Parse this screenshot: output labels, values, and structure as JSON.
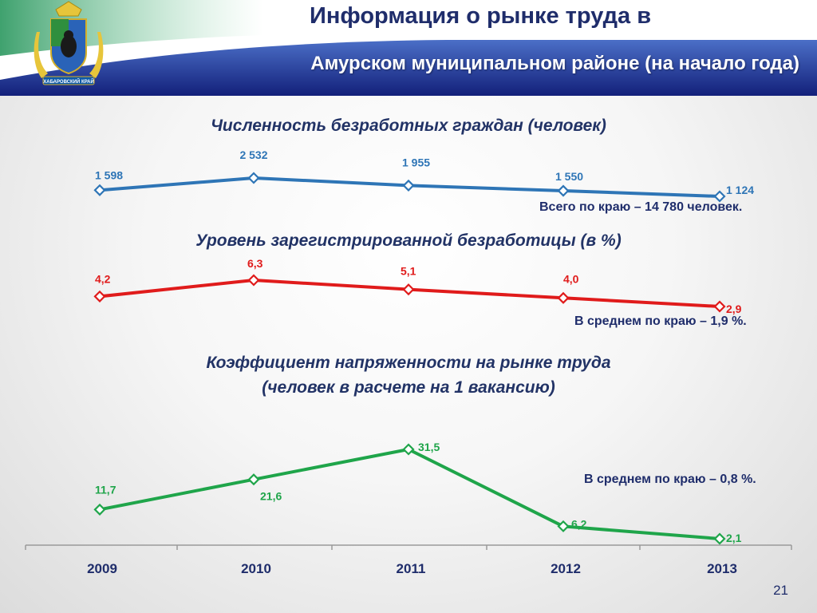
{
  "header": {
    "title_line1": "Информация о рынке труда в",
    "title_line2": "Амурском муниципальном районе (на начало года)",
    "emblem_icon": "khabarovsk-krai-coat-of-arms-icon"
  },
  "colors": {
    "blue": "#2e75b6",
    "red": "#e01b1b",
    "green": "#1fa54a",
    "title_navy": "#1f2d6b"
  },
  "sections": {
    "unemployed_title": "Численность безработных граждан (человек)",
    "unemployed_note": "Всего по краю – 14 780 человек.",
    "rate_title": "Уровень зарегистрированной безработицы (в %)",
    "rate_note": "В среднем по краю – 1,9 %.",
    "tension_title_line1": "Коэффициент напряженности на рынке труда",
    "tension_title_line2": "(человек в расчете на 1 вакансию)",
    "tension_note": "В среднем по краю – 0,8 %."
  },
  "chart_data": [
    {
      "type": "line",
      "title": "Численность безработных граждан (человек)",
      "categories": [
        "2009",
        "2010",
        "2011",
        "2012",
        "2013"
      ],
      "values": [
        1598,
        2532,
        1955,
        1550,
        1124
      ],
      "labels": [
        "1 598",
        "2 532",
        "1 955",
        "1 550",
        "1 124"
      ],
      "color": "#2e75b6"
    },
    {
      "type": "line",
      "title": "Уровень зарегистрированной безработицы (в %)",
      "categories": [
        "2009",
        "2010",
        "2011",
        "2012",
        "2013"
      ],
      "values": [
        4.2,
        6.3,
        5.1,
        4.0,
        2.9
      ],
      "labels": [
        "4,2",
        "6,3",
        "5,1",
        "4,0",
        "2,9"
      ],
      "color": "#e01b1b"
    },
    {
      "type": "line",
      "title": "Коэффициент напряженности на рынке труда (человек в расчете на 1 вакансию)",
      "categories": [
        "2009",
        "2010",
        "2011",
        "2012",
        "2013"
      ],
      "values": [
        11.7,
        21.6,
        31.5,
        6.2,
        2.1
      ],
      "labels": [
        "11,7",
        "21,6",
        "31,5",
        "6,2",
        "2,1"
      ],
      "color": "#1fa54a",
      "ylim": [
        0,
        35
      ]
    }
  ],
  "x_axis": {
    "categories": [
      "2009",
      "2010",
      "2011",
      "2012",
      "2013"
    ]
  },
  "page_number": "21"
}
